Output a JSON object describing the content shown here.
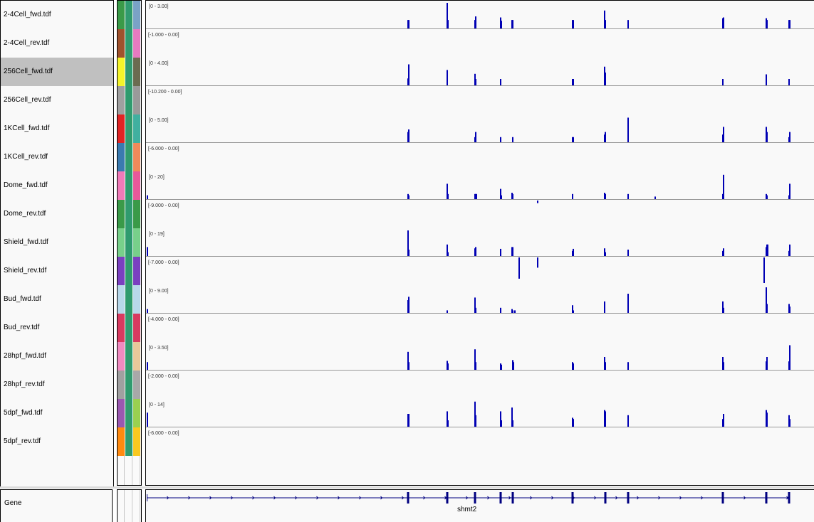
{
  "tracks": [
    {
      "name": "2-4Cell_fwd.tdf",
      "range": "[0 - 3.00]",
      "strand": "fwd",
      "max": 3.0,
      "colors": [
        "#3a9a48",
        "#2f9b6e",
        "#7aa2c6"
      ],
      "selected": false
    },
    {
      "name": "2-4Cell_rev.tdf",
      "range": "[-1.000 - 0.00]",
      "strand": "rev",
      "max": 1.0,
      "colors": [
        "#a0522d",
        "#2f9b6e",
        "#e57ac0"
      ],
      "selected": false
    },
    {
      "name": "256Cell_fwd.tdf",
      "range": "[0 - 4.00]",
      "strand": "fwd",
      "max": 4.0,
      "colors": [
        "#f4f42a",
        "#2f9b6e",
        "#6b6b50"
      ],
      "selected": true
    },
    {
      "name": "256Cell_rev.tdf",
      "range": "[-10.200 - 0.00]",
      "strand": "rev",
      "max": 10.2,
      "colors": [
        "#a0a0a0",
        "#2f9b6e",
        "#9a9a9a"
      ],
      "selected": false
    },
    {
      "name": "1KCell_fwd.tdf",
      "range": "[0 - 5.00]",
      "strand": "fwd",
      "max": 5.0,
      "colors": [
        "#e02424",
        "#2f9b6e",
        "#40b0a0"
      ],
      "selected": false
    },
    {
      "name": "1KCell_rev.tdf",
      "range": "[-6.000 - 0.00]",
      "strand": "rev",
      "max": 6.0,
      "colors": [
        "#3a7ab0",
        "#2f9b6e",
        "#f08a5a"
      ],
      "selected": false
    },
    {
      "name": "Dome_fwd.tdf",
      "range": "[0 - 20]",
      "strand": "fwd",
      "max": 20,
      "colors": [
        "#f07ab8",
        "#2f9b6e",
        "#e8589a"
      ],
      "selected": false
    },
    {
      "name": "Dome_rev.tdf",
      "range": "[-9.000 - 0.00]",
      "strand": "rev",
      "max": 9.0,
      "colors": [
        "#3a9a48",
        "#2f9b6e",
        "#3a9a48"
      ],
      "selected": false
    },
    {
      "name": "Shield_fwd.tdf",
      "range": "[0 - 19]",
      "strand": "fwd",
      "max": 19,
      "colors": [
        "#78d08a",
        "#2f9b6e",
        "#78d08a"
      ],
      "selected": false
    },
    {
      "name": "Shield_rev.tdf",
      "range": "[-7.000 - 0.00]",
      "strand": "rev",
      "max": 7.0,
      "colors": [
        "#7a40c0",
        "#2f9b6e",
        "#7a40c0"
      ],
      "selected": false
    },
    {
      "name": "Bud_fwd.tdf",
      "range": "[0 - 9.00]",
      "strand": "fwd",
      "max": 9.0,
      "colors": [
        "#b8d8ea",
        "#2f9b6e",
        "#b8d8ea"
      ],
      "selected": false
    },
    {
      "name": "Bud_rev.tdf",
      "range": "[-4.000 - 0.00]",
      "strand": "rev",
      "max": 4.0,
      "colors": [
        "#d83a60",
        "#2f9b6e",
        "#d83a60"
      ],
      "selected": false
    },
    {
      "name": "28hpf_fwd.tdf",
      "range": "[0 - 3.50]",
      "strand": "fwd",
      "max": 3.5,
      "colors": [
        "#f08ac0",
        "#2f9b6e",
        "#e8c89a"
      ],
      "selected": false
    },
    {
      "name": "28hpf_rev.tdf",
      "range": "[-2.000 - 0.00]",
      "strand": "rev",
      "max": 2.0,
      "colors": [
        "#a0a0a0",
        "#2f9b6e",
        "#a8a8a8"
      ],
      "selected": false
    },
    {
      "name": "5dpf_fwd.tdf",
      "range": "[0 - 14]",
      "strand": "fwd",
      "max": 14,
      "colors": [
        "#9a58b0",
        "#2f9b6e",
        "#9ad050"
      ],
      "selected": false
    },
    {
      "name": "5dpf_rev.tdf",
      "range": "[-6.000 - 0.00]",
      "strand": "rev",
      "max": 6.0,
      "colors": [
        "#ff8a10",
        "#2f9b6e",
        "#f8c820"
      ],
      "selected": false
    }
  ],
  "exons": [
    1.5,
    367,
    422,
    461,
    497,
    514,
    598,
    644,
    676,
    809,
    870,
    902
  ],
  "signal": {
    "0": [
      [
        367,
        0.33
      ],
      [
        368,
        0.33
      ],
      [
        422,
        1.0
      ],
      [
        423,
        0.33
      ],
      [
        461,
        0.33
      ],
      [
        462,
        0.47
      ],
      [
        497,
        0.43
      ],
      [
        498,
        0.3
      ],
      [
        513,
        0.33
      ],
      [
        514,
        0.33
      ],
      [
        598,
        0.33
      ],
      [
        599,
        0.33
      ],
      [
        643,
        0.7
      ],
      [
        644,
        0.33
      ],
      [
        676,
        0.33
      ],
      [
        809,
        0.4
      ],
      [
        810,
        0.43
      ],
      [
        870,
        0.4
      ],
      [
        871,
        0.33
      ],
      [
        902,
        0.33
      ],
      [
        903,
        0.33
      ]
    ],
    "1": [],
    "2": [
      [
        367,
        0.27
      ],
      [
        368,
        0.82
      ],
      [
        422,
        0.6
      ],
      [
        461,
        0.45
      ],
      [
        462,
        0.25
      ],
      [
        497,
        0.25
      ],
      [
        598,
        0.25
      ],
      [
        599,
        0.25
      ],
      [
        643,
        0.73
      ],
      [
        644,
        0.5
      ],
      [
        809,
        0.25
      ],
      [
        870,
        0.43
      ],
      [
        902,
        0.25
      ]
    ],
    "3": [],
    "4": [
      [
        367,
        0.4
      ],
      [
        368,
        0.5
      ],
      [
        461,
        0.2
      ],
      [
        462,
        0.4
      ],
      [
        497,
        0.2
      ],
      [
        514,
        0.2
      ],
      [
        598,
        0.2
      ],
      [
        599,
        0.2
      ],
      [
        643,
        0.3
      ],
      [
        644,
        0.4
      ],
      [
        676,
        0.96
      ],
      [
        809,
        0.3
      ],
      [
        810,
        0.6
      ],
      [
        870,
        0.6
      ],
      [
        871,
        0.4
      ],
      [
        902,
        0.2
      ],
      [
        903,
        0.4
      ]
    ],
    "5": [],
    "6": [
      [
        1,
        0.15
      ],
      [
        367,
        0.2
      ],
      [
        368,
        0.15
      ],
      [
        422,
        0.6
      ],
      [
        423,
        0.2
      ],
      [
        461,
        0.2
      ],
      [
        462,
        0.2
      ],
      [
        463,
        0.2
      ],
      [
        497,
        0.4
      ],
      [
        498,
        0.15
      ],
      [
        513,
        0.25
      ],
      [
        514,
        0.2
      ],
      [
        598,
        0.2
      ],
      [
        643,
        0.25
      ],
      [
        644,
        0.2
      ],
      [
        676,
        0.2
      ],
      [
        714,
        0.1
      ],
      [
        809,
        0.2
      ],
      [
        810,
        0.95
      ],
      [
        870,
        0.2
      ],
      [
        871,
        0.15
      ],
      [
        902,
        0.15
      ],
      [
        903,
        0.6
      ]
    ],
    "7": [
      [
        549,
        0.1
      ]
    ],
    "8": [
      [
        1,
        0.35
      ],
      [
        367,
        1.0
      ],
      [
        368,
        0.25
      ],
      [
        422,
        0.45
      ],
      [
        423,
        0.15
      ],
      [
        461,
        0.3
      ],
      [
        462,
        0.35
      ],
      [
        497,
        0.28
      ],
      [
        513,
        0.35
      ],
      [
        514,
        0.35
      ],
      [
        598,
        0.2
      ],
      [
        599,
        0.28
      ],
      [
        643,
        0.3
      ],
      [
        644,
        0.15
      ],
      [
        676,
        0.25
      ],
      [
        809,
        0.2
      ],
      [
        810,
        0.3
      ],
      [
        870,
        0.35
      ],
      [
        871,
        0.45
      ],
      [
        872,
        0.45
      ],
      [
        902,
        0.2
      ],
      [
        903,
        0.45
      ]
    ],
    "9": [
      [
        523,
        0.83
      ],
      [
        549,
        0.4
      ],
      [
        867,
        1.0
      ]
    ],
    "10": [
      [
        1,
        0.15
      ],
      [
        367,
        0.5
      ],
      [
        368,
        0.63
      ],
      [
        422,
        0.1
      ],
      [
        461,
        0.6
      ],
      [
        462,
        0.2
      ],
      [
        497,
        0.2
      ],
      [
        513,
        0.15
      ],
      [
        514,
        0.1
      ],
      [
        517,
        0.1
      ],
      [
        598,
        0.3
      ],
      [
        599,
        0.1
      ],
      [
        643,
        0.45
      ],
      [
        676,
        0.75
      ],
      [
        809,
        0.45
      ],
      [
        810,
        0.2
      ],
      [
        870,
        1.0
      ],
      [
        871,
        0.35
      ],
      [
        902,
        0.35
      ],
      [
        903,
        0.25
      ]
    ],
    "11": [],
    "12": [
      [
        1,
        0.3
      ],
      [
        367,
        0.7
      ],
      [
        368,
        0.3
      ],
      [
        422,
        0.35
      ],
      [
        423,
        0.25
      ],
      [
        461,
        0.8
      ],
      [
        462,
        0.3
      ],
      [
        497,
        0.25
      ],
      [
        498,
        0.2
      ],
      [
        514,
        0.38
      ],
      [
        515,
        0.3
      ],
      [
        598,
        0.3
      ],
      [
        599,
        0.25
      ],
      [
        643,
        0.5
      ],
      [
        644,
        0.3
      ],
      [
        676,
        0.3
      ],
      [
        809,
        0.5
      ],
      [
        810,
        0.3
      ],
      [
        870,
        0.33
      ],
      [
        871,
        0.5
      ],
      [
        902,
        0.33
      ],
      [
        903,
        0.96
      ]
    ],
    "13": [],
    "14": [
      [
        1,
        0.55
      ],
      [
        367,
        0.5
      ],
      [
        368,
        0.5
      ],
      [
        422,
        0.6
      ],
      [
        423,
        0.25
      ],
      [
        461,
        0.98
      ],
      [
        462,
        0.45
      ],
      [
        497,
        0.6
      ],
      [
        498,
        0.25
      ],
      [
        513,
        0.75
      ],
      [
        514,
        0.25
      ],
      [
        598,
        0.35
      ],
      [
        599,
        0.3
      ],
      [
        643,
        0.65
      ],
      [
        644,
        0.6
      ],
      [
        676,
        0.45
      ],
      [
        809,
        0.3
      ],
      [
        810,
        0.5
      ],
      [
        870,
        0.65
      ],
      [
        871,
        0.55
      ],
      [
        902,
        0.45
      ],
      [
        903,
        0.3
      ]
    ],
    "15": []
  },
  "gene": {
    "row_label": "Gene",
    "name": "shmt2"
  },
  "colors": {
    "signal": "#0000b4",
    "gene": "#000080",
    "scale_line": "#999999"
  }
}
